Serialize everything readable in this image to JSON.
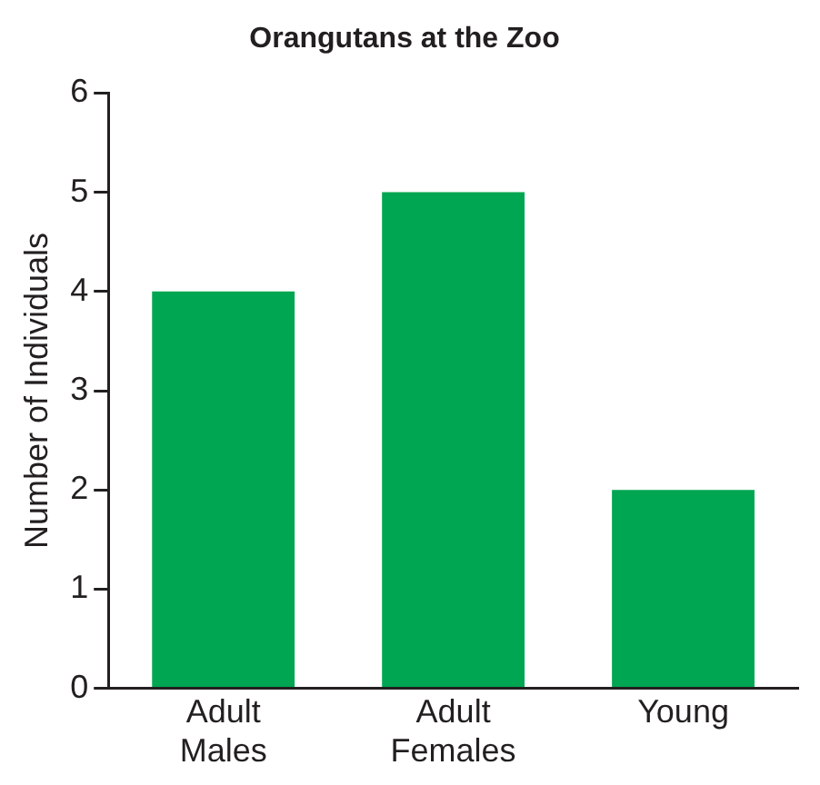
{
  "chart_data": {
    "type": "bar",
    "title": "Orangutans at the Zoo",
    "ylabel": "Number of Individuals",
    "categories": [
      "Adult Males",
      "Adult Females",
      "Young"
    ],
    "values": [
      4,
      5,
      2
    ],
    "color": "#00a651",
    "ylim": [
      0,
      6
    ],
    "yticks": [
      0,
      1,
      2,
      3,
      4,
      5,
      6
    ],
    "grid": false,
    "legend": false
  }
}
